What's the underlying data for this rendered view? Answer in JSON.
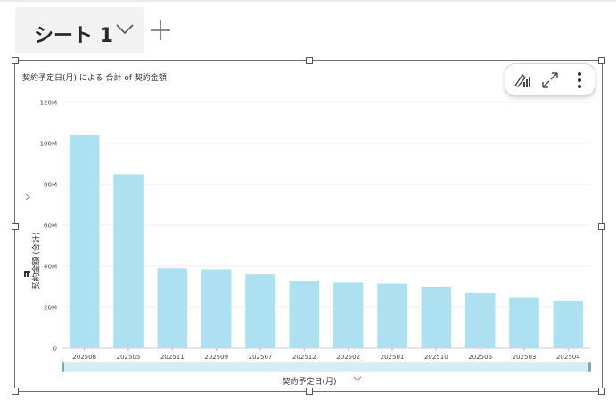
{
  "sheet": {
    "tab_label": "シート 1",
    "colors": {
      "tab_bg": "#f3f3f3"
    }
  },
  "visual": {
    "title": "契約予定日(月) による 合計 of 契約金額",
    "toolbar": {
      "icons": [
        "chart-type-icon",
        "expand-icon",
        "more-options-icon"
      ]
    }
  },
  "chart_data": {
    "type": "bar",
    "title": "契約予定日(月) による 合計 of 契約金額",
    "xlabel": "契約予定日(月)",
    "ylabel": "契約金額 (合計)",
    "categories": [
      "202508",
      "202505",
      "202511",
      "202509",
      "202507",
      "202512",
      "202502",
      "202501",
      "202510",
      "202506",
      "202503",
      "202504"
    ],
    "values": [
      104,
      85,
      39,
      38.5,
      36,
      33,
      32,
      31.5,
      30,
      27,
      25,
      23
    ],
    "value_unit": "M",
    "ylim": [
      0,
      120
    ],
    "yticks": [
      0,
      20,
      40,
      60,
      80,
      100,
      120
    ],
    "ytick_labels": [
      "0",
      "20M",
      "40M",
      "60M",
      "80M",
      "100M",
      "120M"
    ],
    "grid": true,
    "bar_color": "#ade0f0"
  }
}
